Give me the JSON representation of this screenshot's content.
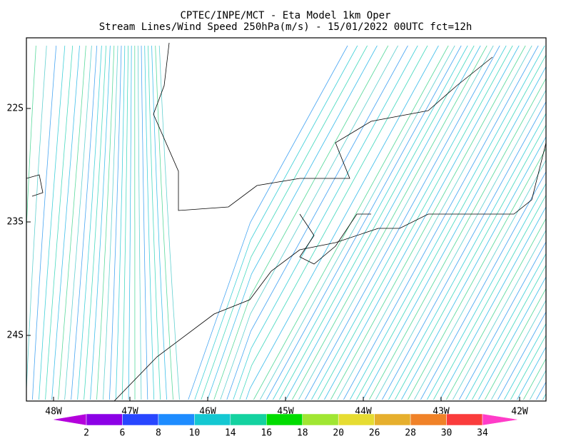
{
  "header": {
    "title": "CPTEC/INPE/MCT -  Eta Model 1km Oper",
    "subtitle": "Stream Lines/Wind Speed 250hPa(m/s) - 15/01/2022 00UTC fct=12h"
  },
  "map": {
    "lat_labels": [
      "22S",
      "23S",
      "24S"
    ],
    "lon_labels": [
      "48W",
      "47W",
      "46W",
      "45W",
      "44W",
      "43W",
      "42W"
    ]
  },
  "colorbar": {
    "labels": [
      2,
      6,
      8,
      10,
      14,
      16,
      18,
      20,
      26,
      28,
      30,
      34
    ],
    "colors": [
      "#b400dc",
      "#8c00e6",
      "#2846ff",
      "#1e8cff",
      "#14c8d2",
      "#14d2a0",
      "#00dc00",
      "#a0e632",
      "#e6dc32",
      "#e6af2d",
      "#f08228",
      "#fa3c3c",
      "#ff3cc8"
    ]
  }
}
